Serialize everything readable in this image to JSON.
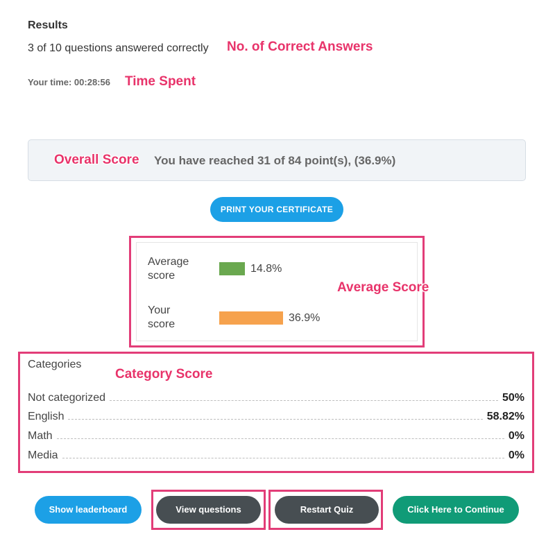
{
  "results": {
    "title": "Results",
    "correct_text": "3 of 10 questions answered correctly",
    "time_text": "Your time: 00:28:56"
  },
  "overall": {
    "text": "You have reached 31 of 84 point(s), (36.9%)"
  },
  "print_button": {
    "label": "PRINT YOUR CERTIFICATE"
  },
  "score_bars": [
    {
      "label_line1": "Average",
      "label_line2": "score",
      "value_text": "14.8%",
      "value": 14.8,
      "color": "#6aa84f"
    },
    {
      "label_line1": "Your",
      "label_line2": "score",
      "value_text": "36.9%",
      "value": 36.9,
      "color": "#f6a24d"
    }
  ],
  "categories": {
    "title": "Categories",
    "rows": [
      {
        "name": "Not categorized",
        "value": "50%"
      },
      {
        "name": "English",
        "value": "58.82%"
      },
      {
        "name": "Math",
        "value": "0%"
      },
      {
        "name": "Media",
        "value": "0%"
      }
    ]
  },
  "buttons": {
    "leaderboard": "Show leaderboard",
    "view_questions": "View questions",
    "restart": "Restart Quiz",
    "continue": "Click Here to Continue"
  },
  "annotations": {
    "correct_answers": "No. of Correct Answers",
    "time_spent": "Time Spent",
    "overall_score": "Overall Score",
    "average_score": "Average Score",
    "category_score": "Category Score"
  },
  "colors": {
    "annotation": "#e8336a",
    "print_button": "#1ca0e6",
    "dark_button": "#474e52",
    "continue_button": "#109b77"
  }
}
